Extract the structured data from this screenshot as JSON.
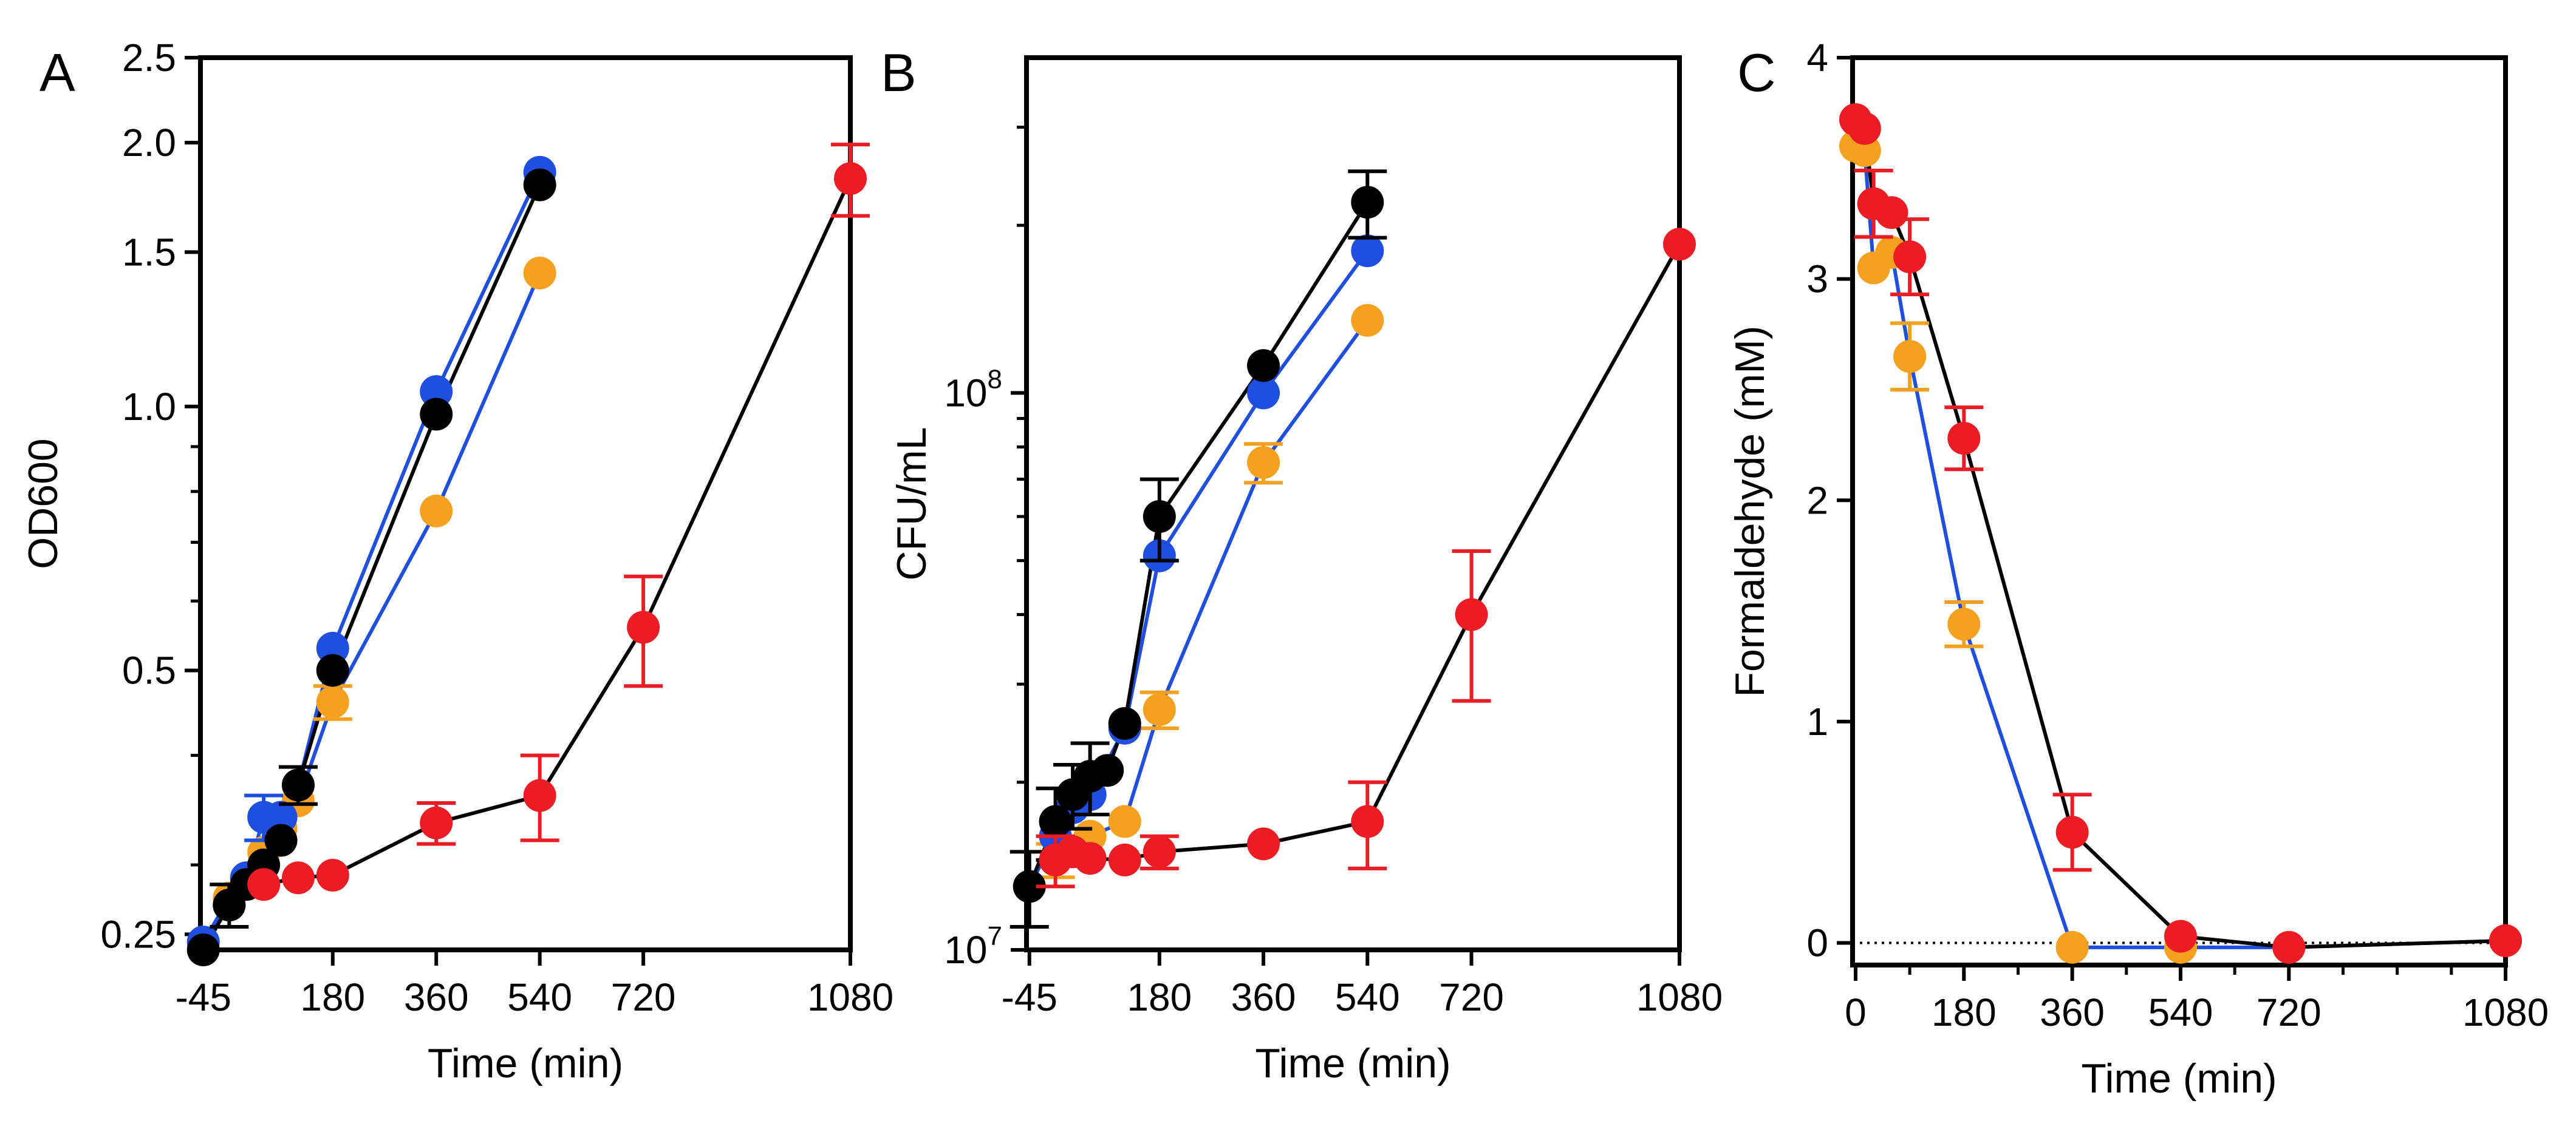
{
  "chart_data": [
    {
      "panel_label": "A",
      "type": "line",
      "y_scale": "log",
      "xlabel": "Time (min)",
      "ylabel": "OD600",
      "xlim": [
        -50,
        1080
      ],
      "ylim": [
        0.24,
        2.5
      ],
      "x_ticks": [
        -45,
        180,
        360,
        540,
        720,
        1080
      ],
      "x_tick_labels": [
        "-45",
        "180",
        "360",
        "540",
        "720",
        "1080"
      ],
      "y_ticks": [
        0.25,
        0.5,
        1.0,
        1.5,
        2.0,
        2.5
      ],
      "y_tick_labels": [
        "0.25",
        "0.5",
        "1.0",
        "1.5",
        "2.0",
        "2.5"
      ],
      "y_minor_ticks": [
        0.3,
        0.4,
        0.6,
        0.7,
        0.8,
        0.9
      ],
      "series": [
        {
          "name": "orange",
          "color": "#F5A01E",
          "line_color": "#1F4FE0",
          "points": [
            {
              "x": -45,
              "y": 0.245
            },
            {
              "x": 0,
              "y": 0.275
            },
            {
              "x": 30,
              "y": 0.29
            },
            {
              "x": 60,
              "y": 0.31
            },
            {
              "x": 90,
              "y": 0.33
            },
            {
              "x": 120,
              "y": 0.355
            },
            {
              "x": 180,
              "y": 0.46,
              "err": 0.02
            },
            {
              "x": 360,
              "y": 0.76
            },
            {
              "x": 540,
              "y": 1.42
            }
          ]
        },
        {
          "name": "blue",
          "color": "#1F4FE0",
          "line_color": "#1F4FE0",
          "points": [
            {
              "x": -45,
              "y": 0.245
            },
            {
              "x": 0,
              "y": 0.27
            },
            {
              "x": 30,
              "y": 0.29
            },
            {
              "x": 60,
              "y": 0.34,
              "err": 0.02
            },
            {
              "x": 90,
              "y": 0.34
            },
            {
              "x": 120,
              "y": 0.37
            },
            {
              "x": 180,
              "y": 0.53
            },
            {
              "x": 360,
              "y": 1.04
            },
            {
              "x": 540,
              "y": 1.85
            }
          ]
        },
        {
          "name": "black",
          "color": "#000000",
          "line_color": "#000000",
          "points": [
            {
              "x": -45,
              "y": 0.24
            },
            {
              "x": 0,
              "y": 0.27,
              "err": 0.015
            },
            {
              "x": 30,
              "y": 0.285
            },
            {
              "x": 60,
              "y": 0.3
            },
            {
              "x": 90,
              "y": 0.32
            },
            {
              "x": 120,
              "y": 0.37,
              "err": 0.018
            },
            {
              "x": 180,
              "y": 0.5
            },
            {
              "x": 360,
              "y": 0.98
            },
            {
              "x": 540,
              "y": 1.79
            }
          ]
        },
        {
          "name": "red",
          "color": "#EC1C24",
          "line_color": "#000000",
          "points": [
            {
              "x": 60,
              "y": 0.285
            },
            {
              "x": 120,
              "y": 0.29
            },
            {
              "x": 180,
              "y": 0.292
            },
            {
              "x": 360,
              "y": 0.335,
              "err": 0.018
            },
            {
              "x": 540,
              "y": 0.36,
              "err": 0.04
            },
            {
              "x": 720,
              "y": 0.56,
              "err": 0.08
            },
            {
              "x": 1080,
              "y": 1.82,
              "err": 0.17
            }
          ]
        }
      ]
    },
    {
      "panel_label": "B",
      "type": "line",
      "y_scale": "log",
      "xlabel": "Time (min)",
      "ylabel": "CFU/mL",
      "xlim": [
        -50,
        1080
      ],
      "ylim": [
        10000000,
        400000000
      ],
      "x_ticks": [
        -45,
        180,
        360,
        540,
        720,
        1080
      ],
      "x_tick_labels": [
        "-45",
        "180",
        "360",
        "540",
        "720",
        "1080"
      ],
      "y_ticks": [
        10000000,
        100000000
      ],
      "y_tick_labels": [
        {
          "base": "10",
          "exp": "7"
        },
        {
          "base": "10",
          "exp": "8"
        }
      ],
      "series": [
        {
          "name": "orange",
          "color": "#F5A01E",
          "line_color": "#1F4FE0",
          "points": [
            {
              "x": 0,
              "y": 14500000,
              "err": 1000000
            },
            {
              "x": 30,
              "y": 15000000
            },
            {
              "x": 60,
              "y": 16000000
            },
            {
              "x": 120,
              "y": 17000000
            },
            {
              "x": 180,
              "y": 27000000,
              "err": 2000000
            },
            {
              "x": 360,
              "y": 75000000,
              "err": 6000000
            },
            {
              "x": 540,
              "y": 135000000
            }
          ]
        },
        {
          "name": "blue",
          "color": "#1F4FE0",
          "line_color": "#1F4FE0",
          "points": [
            {
              "x": -45,
              "y": 13000000
            },
            {
              "x": 0,
              "y": 16000000
            },
            {
              "x": 30,
              "y": 18000000
            },
            {
              "x": 60,
              "y": 19000000
            },
            {
              "x": 120,
              "y": 25000000
            },
            {
              "x": 180,
              "y": 51000000
            },
            {
              "x": 360,
              "y": 100000000
            },
            {
              "x": 540,
              "y": 180000000
            }
          ]
        },
        {
          "name": "black",
          "color": "#000000",
          "line_color": "#000000",
          "points": [
            {
              "x": -45,
              "y": 13000000,
              "err": 2000000
            },
            {
              "x": 0,
              "y": 17000000,
              "err": 2500000
            },
            {
              "x": 30,
              "y": 19000000,
              "err": 2500000
            },
            {
              "x": 60,
              "y": 20500000,
              "err": 3000000
            },
            {
              "x": 90,
              "y": 21000000
            },
            {
              "x": 120,
              "y": 25500000
            },
            {
              "x": 180,
              "y": 60000000,
              "err": 10000000
            },
            {
              "x": 360,
              "y": 112000000
            },
            {
              "x": 540,
              "y": 220000000,
              "err": 30000000
            }
          ]
        },
        {
          "name": "red",
          "color": "#EC1C24",
          "line_color": "#000000",
          "points": [
            {
              "x": 0,
              "y": 14500000,
              "err": 1500000
            },
            {
              "x": 30,
              "y": 15000000
            },
            {
              "x": 60,
              "y": 14600000
            },
            {
              "x": 120,
              "y": 14500000
            },
            {
              "x": 180,
              "y": 15000000,
              "err": 1000000
            },
            {
              "x": 360,
              "y": 15500000
            },
            {
              "x": 540,
              "y": 17000000,
              "err": 3000000
            },
            {
              "x": 720,
              "y": 40000000,
              "err": 12000000
            },
            {
              "x": 1080,
              "y": 185000000
            }
          ]
        }
      ]
    },
    {
      "panel_label": "C",
      "type": "line",
      "y_scale": "linear",
      "xlabel": "Time (min)",
      "ylabel": "Formaldehyde (mM)",
      "xlim": [
        -5,
        1080
      ],
      "ylim": [
        -0.1,
        4
      ],
      "x_ticks": [
        0,
        180,
        360,
        540,
        720,
        1080
      ],
      "x_tick_labels": [
        "0",
        "180",
        "360",
        "540",
        "720",
        "1080"
      ],
      "x_minor_ticks": [
        90,
        270,
        450,
        630,
        810,
        900,
        990
      ],
      "y_ticks": [
        0,
        1,
        2,
        3,
        4
      ],
      "y_tick_labels": [
        "0",
        "1",
        "2",
        "3",
        "4"
      ],
      "zero_line": "dotted",
      "series": [
        {
          "name": "orange",
          "color": "#F5A01E",
          "line_color": "#1F4FE0",
          "points": [
            {
              "x": 0,
              "y": 3.6
            },
            {
              "x": 15,
              "y": 3.58
            },
            {
              "x": 30,
              "y": 3.05
            },
            {
              "x": 60,
              "y": 3.12
            },
            {
              "x": 90,
              "y": 2.65,
              "err": 0.15
            },
            {
              "x": 180,
              "y": 1.44,
              "err": 0.1
            },
            {
              "x": 360,
              "y": -0.02
            },
            {
              "x": 540,
              "y": -0.02
            },
            {
              "x": 720,
              "y": -0.02
            },
            {
              "x": 1080,
              "y": 0.01
            }
          ]
        },
        {
          "name": "red",
          "color": "#EC1C24",
          "line_color": "#000000",
          "points": [
            {
              "x": 0,
              "y": 3.72
            },
            {
              "x": 15,
              "y": 3.68
            },
            {
              "x": 30,
              "y": 3.34,
              "err": 0.15
            },
            {
              "x": 60,
              "y": 3.3
            },
            {
              "x": 90,
              "y": 3.1,
              "err": 0.17
            },
            {
              "x": 180,
              "y": 2.28,
              "err": 0.14
            },
            {
              "x": 360,
              "y": 0.5,
              "err": 0.17
            },
            {
              "x": 540,
              "y": 0.03
            },
            {
              "x": 720,
              "y": -0.02
            },
            {
              "x": 1080,
              "y": 0.01
            }
          ]
        }
      ]
    }
  ]
}
